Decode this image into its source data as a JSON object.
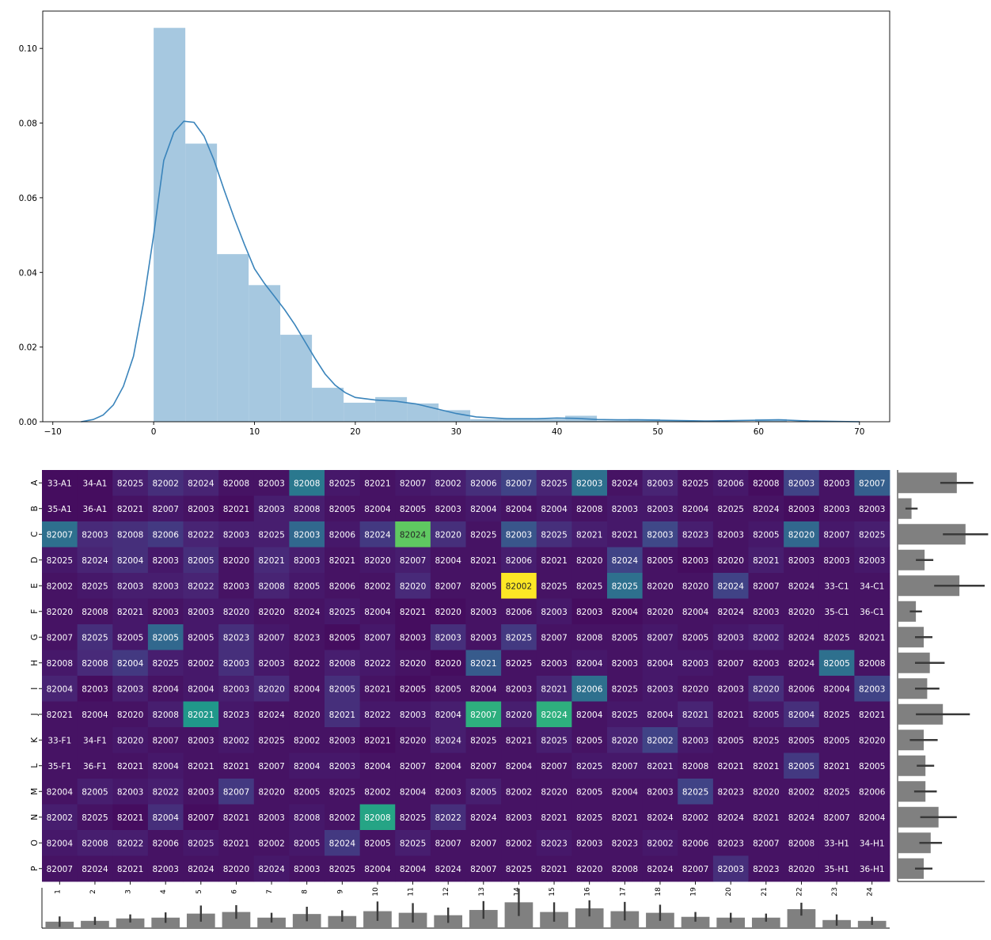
{
  "chart_data": [
    {
      "type": "histogram",
      "title": "",
      "xlabel": "",
      "ylabel": "",
      "xlim": [
        -11,
        73
      ],
      "ylim": [
        0,
        0.11
      ],
      "x_ticks": [
        -10,
        0,
        10,
        20,
        30,
        40,
        50,
        60,
        70
      ],
      "y_ticks": [
        0.0,
        0.02,
        0.04,
        0.06,
        0.08,
        0.1
      ],
      "y_tick_labels": [
        "0.00",
        "0.02",
        "0.04",
        "0.06",
        "0.08",
        "0.10"
      ],
      "bin_edges": [
        0,
        3.14,
        6.28,
        9.42,
        12.56,
        15.7,
        18.84,
        21.98,
        25.12,
        28.26,
        31.4,
        34.54,
        37.68,
        40.82,
        43.96,
        47.1,
        50.24,
        53.38,
        56.52,
        59.66,
        62.8
      ],
      "bin_densities": [
        0.1055,
        0.0745,
        0.0449,
        0.0366,
        0.0233,
        0.0091,
        0.0051,
        0.0066,
        0.0049,
        0.0031,
        0.0007,
        0.0007,
        0.0007,
        0.0016,
        0.0003,
        0.0007,
        0.0003,
        0.0,
        0.0,
        0.0007
      ],
      "kde": {
        "x": [
          -7.2,
          -6,
          -5,
          -4,
          -3,
          -2,
          -1,
          0,
          1,
          2,
          3,
          4,
          5,
          6,
          7,
          8,
          9,
          10,
          11,
          12,
          13,
          14,
          15,
          16,
          17,
          18,
          19,
          20,
          22,
          24,
          26,
          28,
          30,
          32,
          35,
          38,
          40,
          42,
          44,
          46,
          48,
          50,
          55,
          60,
          62,
          65,
          70
        ],
        "y": [
          0.0,
          0.0006,
          0.0018,
          0.0045,
          0.0095,
          0.0175,
          0.032,
          0.05,
          0.07,
          0.0775,
          0.0805,
          0.0802,
          0.0765,
          0.07,
          0.062,
          0.0545,
          0.0475,
          0.041,
          0.037,
          0.0335,
          0.03,
          0.026,
          0.0215,
          0.017,
          0.0128,
          0.0098,
          0.0078,
          0.0065,
          0.0058,
          0.0055,
          0.0048,
          0.0035,
          0.0022,
          0.0013,
          0.0008,
          0.0008,
          0.001,
          0.0009,
          0.0006,
          0.0005,
          0.0005,
          0.0004,
          0.0002,
          0.0004,
          0.0005,
          0.0002,
          0.0
        ]
      },
      "bar_color": "#a6c8e0",
      "line_color": "#3a84bb"
    },
    {
      "type": "heatmap",
      "colormap": "viridis",
      "rows": [
        "A",
        "B",
        "C",
        "D",
        "E",
        "F",
        "G",
        "H",
        "I",
        "J",
        "K",
        "L",
        "M",
        "N",
        "O",
        "P"
      ],
      "columns": [
        "1",
        "2",
        "3",
        "4",
        "5",
        "6",
        "7",
        "8",
        "9",
        "10",
        "11",
        "12",
        "13",
        "14",
        "15",
        "16",
        "17",
        "18",
        "19",
        "20",
        "21",
        "22",
        "23",
        "24"
      ],
      "vmax": 60,
      "annotations": [
        [
          "33-A1",
          "34-A1",
          "82025",
          "82002",
          "82024",
          "82008",
          "82003",
          "82008",
          "82025",
          "82021",
          "82007",
          "82002",
          "82006",
          "82007",
          "82025",
          "82003",
          "82024",
          "82003",
          "82025",
          "82006",
          "82008",
          "82003",
          "82003",
          "82007"
        ],
        [
          "35-A1",
          "36-A1",
          "82021",
          "82007",
          "82003",
          "82021",
          "82003",
          "82008",
          "82005",
          "82004",
          "82005",
          "82003",
          "82004",
          "82004",
          "82004",
          "82008",
          "82003",
          "82003",
          "82004",
          "82025",
          "82024",
          "82003",
          "82003",
          "82003"
        ],
        [
          "82007",
          "82003",
          "82008",
          "82006",
          "82022",
          "82003",
          "82025",
          "82003",
          "82006",
          "82024",
          "82024",
          "82020",
          "82025",
          "82003",
          "82025",
          "82021",
          "82021",
          "82003",
          "82023",
          "82003",
          "82005",
          "82020",
          "82007",
          "82025"
        ],
        [
          "82025",
          "82024",
          "82004",
          "82003",
          "82005",
          "82020",
          "82021",
          "82003",
          "82021",
          "82020",
          "82007",
          "82004",
          "82021",
          "82006",
          "82021",
          "82020",
          "82024",
          "82005",
          "82003",
          "82020",
          "82021",
          "82003",
          "82003",
          "82003"
        ],
        [
          "82002",
          "82025",
          "82003",
          "82003",
          "82022",
          "82003",
          "82008",
          "82005",
          "82006",
          "82002",
          "82020",
          "82007",
          "82005",
          "82002",
          "82025",
          "82025",
          "82025",
          "82020",
          "82020",
          "82024",
          "82007",
          "82024",
          "33-C1",
          "34-C1"
        ],
        [
          "82020",
          "82008",
          "82021",
          "82003",
          "82003",
          "82020",
          "82020",
          "82024",
          "82025",
          "82004",
          "82021",
          "82020",
          "82003",
          "82006",
          "82003",
          "82003",
          "82004",
          "82020",
          "82004",
          "82024",
          "82003",
          "82020",
          "35-C1",
          "36-C1"
        ],
        [
          "82007",
          "82025",
          "82005",
          "82005",
          "82005",
          "82023",
          "82007",
          "82023",
          "82005",
          "82007",
          "82003",
          "82003",
          "82003",
          "82025",
          "82007",
          "82008",
          "82005",
          "82007",
          "82005",
          "82003",
          "82002",
          "82024",
          "82025",
          "82021"
        ],
        [
          "82008",
          "82008",
          "82004",
          "82025",
          "82002",
          "82003",
          "82003",
          "82022",
          "82008",
          "82022",
          "82020",
          "82020",
          "82021",
          "82025",
          "82003",
          "82004",
          "82003",
          "82004",
          "82003",
          "82007",
          "82003",
          "82024",
          "82005",
          "82008"
        ],
        [
          "82004",
          "82003",
          "82003",
          "82004",
          "82004",
          "82003",
          "82020",
          "82004",
          "82005",
          "82021",
          "82005",
          "82005",
          "82004",
          "82003",
          "82021",
          "82006",
          "82025",
          "82003",
          "82020",
          "82003",
          "82020",
          "82006",
          "82004",
          "82003"
        ],
        [
          "82021",
          "82004",
          "82020",
          "82008",
          "82021",
          "82023",
          "82024",
          "82020",
          "82021",
          "82022",
          "82003",
          "82004",
          "82007",
          "82020",
          "82024",
          "82004",
          "82025",
          "82004",
          "82021",
          "82021",
          "82005",
          "82004",
          "82025",
          "82021"
        ],
        [
          "33-F1",
          "34-F1",
          "82020",
          "82007",
          "82003",
          "82002",
          "82025",
          "82002",
          "82003",
          "82021",
          "82020",
          "82024",
          "82025",
          "82021",
          "82025",
          "82005",
          "82020",
          "82002",
          "82003",
          "82005",
          "82025",
          "82005",
          "82005",
          "82020"
        ],
        [
          "35-F1",
          "36-F1",
          "82021",
          "82004",
          "82021",
          "82021",
          "82007",
          "82004",
          "82003",
          "82004",
          "82007",
          "82004",
          "82007",
          "82004",
          "82007",
          "82025",
          "82007",
          "82021",
          "82008",
          "82021",
          "82021",
          "82005",
          "82021",
          "82005"
        ],
        [
          "82004",
          "82005",
          "82003",
          "82022",
          "82003",
          "82007",
          "82020",
          "82005",
          "82025",
          "82002",
          "82004",
          "82003",
          "82005",
          "82002",
          "82020",
          "82005",
          "82004",
          "82003",
          "82025",
          "82023",
          "82020",
          "82002",
          "82025",
          "82006"
        ],
        [
          "82002",
          "82025",
          "82021",
          "82004",
          "82007",
          "82021",
          "82003",
          "82008",
          "82002",
          "82008",
          "82025",
          "82022",
          "82024",
          "82003",
          "82021",
          "82025",
          "82021",
          "82024",
          "82002",
          "82024",
          "82021",
          "82024",
          "82007",
          "82004"
        ],
        [
          "82004",
          "82008",
          "82022",
          "82006",
          "82025",
          "82021",
          "82002",
          "82005",
          "82024",
          "82005",
          "82025",
          "82007",
          "82007",
          "82002",
          "82023",
          "82003",
          "82023",
          "82002",
          "82006",
          "82023",
          "82007",
          "82008",
          "33-H1",
          "34-H1"
        ],
        [
          "82007",
          "82024",
          "82021",
          "82003",
          "82024",
          "82020",
          "82024",
          "82003",
          "82025",
          "82004",
          "82004",
          "82024",
          "82007",
          "82025",
          "82021",
          "82020",
          "82008",
          "82024",
          "82007",
          "82003",
          "82023",
          "82020",
          "35-H1",
          "36-H1"
        ]
      ],
      "values": [
        [
          2,
          2,
          5,
          8,
          6,
          3,
          3,
          24,
          4,
          3,
          4,
          5,
          8,
          12,
          6,
          22,
          3,
          6,
          3,
          4,
          2,
          12,
          3,
          18
        ],
        [
          2,
          2,
          3,
          4,
          3,
          2,
          5,
          5,
          3,
          3,
          3,
          3,
          4,
          3,
          4,
          3,
          4,
          4,
          3,
          3,
          3,
          2,
          3,
          3
        ],
        [
          22,
          7,
          8,
          10,
          6,
          5,
          5,
          20,
          4,
          10,
          45,
          8,
          3,
          16,
          8,
          5,
          4,
          13,
          5,
          3,
          4,
          20,
          4,
          5
        ],
        [
          4,
          6,
          8,
          4,
          8,
          3,
          7,
          5,
          3,
          4,
          5,
          3,
          3,
          5,
          3,
          3,
          12,
          3,
          2,
          3,
          5,
          3,
          3,
          4
        ],
        [
          3,
          4,
          5,
          5,
          6,
          3,
          6,
          4,
          3,
          3,
          7,
          3,
          3,
          60,
          3,
          3,
          22,
          3,
          3,
          12,
          3,
          3,
          3,
          3
        ],
        [
          3,
          3,
          4,
          3,
          4,
          4,
          3,
          3,
          4,
          3,
          2,
          2,
          3,
          3,
          4,
          2,
          2,
          3,
          3,
          3,
          3,
          3,
          3,
          3
        ],
        [
          3,
          8,
          4,
          20,
          4,
          8,
          4,
          3,
          2,
          4,
          2,
          8,
          3,
          10,
          3,
          3,
          3,
          4,
          3,
          4,
          5,
          3,
          3,
          3
        ],
        [
          4,
          7,
          10,
          5,
          4,
          8,
          4,
          3,
          5,
          4,
          3,
          2,
          17,
          3,
          3,
          4,
          3,
          4,
          4,
          3,
          3,
          3,
          22,
          3
        ],
        [
          6,
          2,
          5,
          3,
          4,
          5,
          7,
          3,
          8,
          3,
          2,
          3,
          3,
          3,
          6,
          22,
          3,
          4,
          3,
          3,
          8,
          3,
          3,
          12
        ],
        [
          3,
          3,
          3,
          5,
          32,
          4,
          3,
          3,
          8,
          4,
          4,
          5,
          38,
          5,
          38,
          3,
          4,
          4,
          6,
          3,
          4,
          8,
          3,
          3
        ],
        [
          3,
          3,
          4,
          3,
          3,
          4,
          3,
          3,
          3,
          2,
          3,
          5,
          3,
          3,
          5,
          3,
          6,
          12,
          4,
          3,
          3,
          3,
          3,
          3
        ],
        [
          3,
          3,
          3,
          4,
          3,
          3,
          3,
          4,
          4,
          3,
          3,
          3,
          3,
          3,
          3,
          4,
          4,
          4,
          3,
          3,
          3,
          10,
          3,
          3
        ],
        [
          3,
          5,
          4,
          5,
          3,
          10,
          3,
          3,
          3,
          3,
          3,
          3,
          5,
          3,
          3,
          3,
          3,
          3,
          12,
          3,
          3,
          3,
          3,
          3
        ],
        [
          5,
          3,
          2,
          8,
          2,
          3,
          3,
          4,
          3,
          35,
          3,
          8,
          3,
          3,
          3,
          3,
          3,
          3,
          3,
          3,
          3,
          3,
          3,
          3
        ],
        [
          4,
          5,
          5,
          3,
          4,
          3,
          3,
          4,
          10,
          3,
          5,
          3,
          3,
          3,
          4,
          3,
          3,
          4,
          3,
          3,
          3,
          3,
          3,
          3
        ],
        [
          3,
          3,
          3,
          3,
          3,
          3,
          4,
          3,
          3,
          3,
          3,
          3,
          3,
          3,
          3,
          3,
          3,
          3,
          3,
          8,
          3,
          3,
          3,
          3
        ]
      ],
      "row_margin_means": [
        0.68,
        0.16,
        0.78,
        0.31,
        0.71,
        0.21,
        0.3,
        0.37,
        0.34,
        0.52,
        0.3,
        0.32,
        0.32,
        0.47,
        0.38,
        0.3
      ],
      "row_margin_errors": [
        0.19,
        0.07,
        0.26,
        0.1,
        0.29,
        0.07,
        0.1,
        0.17,
        0.14,
        0.31,
        0.16,
        0.1,
        0.13,
        0.21,
        0.13,
        0.1
      ],
      "col_margin_means": [
        0.16,
        0.18,
        0.24,
        0.26,
        0.36,
        0.4,
        0.26,
        0.35,
        0.3,
        0.42,
        0.38,
        0.32,
        0.45,
        0.64,
        0.4,
        0.49,
        0.42,
        0.38,
        0.28,
        0.26,
        0.26,
        0.47,
        0.2,
        0.18
      ],
      "col_margin_errors": [
        0.13,
        0.1,
        0.1,
        0.13,
        0.2,
        0.17,
        0.12,
        0.18,
        0.14,
        0.24,
        0.24,
        0.19,
        0.22,
        0.34,
        0.24,
        0.2,
        0.23,
        0.2,
        0.12,
        0.12,
        0.1,
        0.16,
        0.14,
        0.1
      ],
      "margin_bar_color": "#808080",
      "errorbar_color": "#3a3a3a"
    }
  ]
}
